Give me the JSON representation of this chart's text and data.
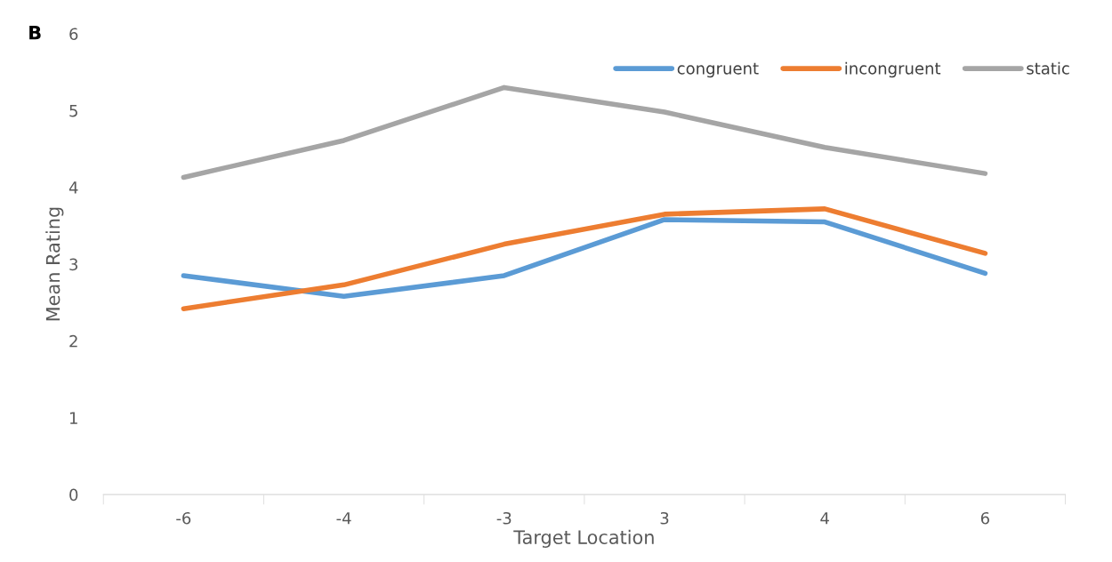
{
  "chart_data": {
    "type": "line",
    "xlabel": "Target Location",
    "ylabel": "Mean Rating",
    "annotations": [
      "B"
    ],
    "categories": [
      "-6",
      "-4",
      "-3",
      "3",
      "4",
      "6"
    ],
    "series": [
      {
        "name": "congruent",
        "color": "#5b9bd5",
        "values": [
          2.85,
          2.58,
          2.85,
          3.58,
          3.55,
          2.88
        ]
      },
      {
        "name": "incongruent",
        "color": "#ed7d31",
        "values": [
          2.42,
          2.73,
          3.26,
          3.65,
          3.72,
          3.14
        ]
      },
      {
        "name": "static",
        "color": "#a5a5a5",
        "values": [
          4.13,
          4.61,
          5.3,
          4.98,
          4.52,
          4.18
        ]
      }
    ],
    "ylim": [
      0,
      6
    ],
    "yticks": [
      0,
      1,
      2,
      3,
      4,
      5,
      6
    ],
    "grid": false,
    "legend": "top right",
    "marker": "none",
    "line_style": "solid"
  }
}
